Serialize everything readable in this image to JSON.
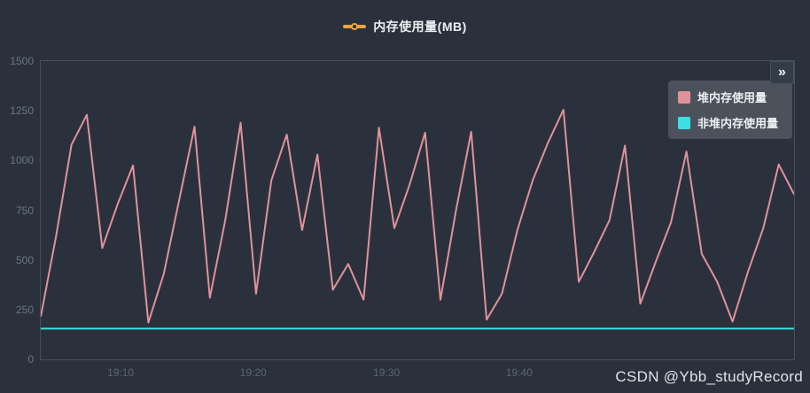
{
  "header": {
    "title": "内存使用量(MB)",
    "marker_color": "#f3a43b"
  },
  "toolbox": {
    "expand_label": "»"
  },
  "watermark": "CSDN @Ybb_studyRecord",
  "legend": {
    "position": "top-right",
    "items": [
      {
        "label": "堆内存使用量",
        "color": "#e0929b"
      },
      {
        "label": "非堆内存使用量",
        "color": "#3ce0e2"
      }
    ]
  },
  "chart_data": {
    "type": "line",
    "title": "内存使用量(MB)",
    "xlabel": "",
    "ylabel": "",
    "ylim": [
      0,
      1500
    ],
    "y_ticks": [
      0,
      250,
      500,
      750,
      1000,
      1250,
      1500
    ],
    "x_ticks": [
      {
        "label": "19:10",
        "pos": 0.106
      },
      {
        "label": "19:20",
        "pos": 0.282
      },
      {
        "label": "19:30",
        "pos": 0.459
      },
      {
        "label": "19:40",
        "pos": 0.635
      }
    ],
    "grid": false,
    "legend_position": "top-right",
    "background": "#2a313c",
    "series": [
      {
        "name": "堆内存使用量",
        "color": "#e0929b",
        "values": [
          215,
          620,
          1080,
          1230,
          560,
          780,
          975,
          185,
          430,
          800,
          1170,
          310,
          700,
          1190,
          330,
          900,
          1130,
          650,
          1030,
          350,
          480,
          300,
          1165,
          660,
          880,
          1140,
          300,
          745,
          1145,
          200,
          330,
          650,
          900,
          1090,
          1255,
          390,
          540,
          700,
          1075,
          280,
          490,
          690,
          1045,
          530,
          390,
          190,
          440,
          660,
          980,
          830
        ]
      },
      {
        "name": "非堆内存使用量",
        "color": "#3ce0e2",
        "values": [
          155,
          155,
          155,
          155,
          155,
          155,
          155,
          155,
          155,
          155,
          155,
          155,
          155,
          155,
          155,
          155,
          155,
          155,
          155,
          155,
          155,
          155,
          155,
          155,
          155,
          155,
          155,
          155,
          155,
          155,
          155,
          155,
          155,
          155,
          155,
          155,
          155,
          155,
          155,
          155,
          155,
          155,
          155,
          155,
          155,
          155,
          155,
          155,
          155,
          155
        ]
      }
    ]
  }
}
